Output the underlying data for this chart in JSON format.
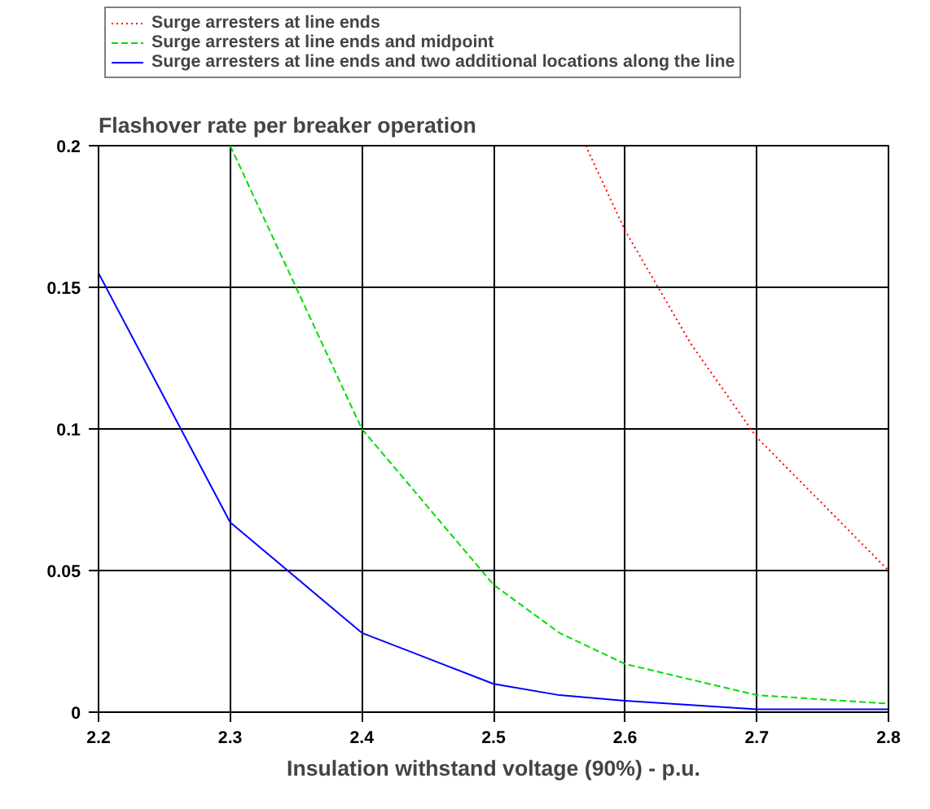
{
  "chart_data": {
    "type": "line",
    "title": "Flashover rate per breaker operation",
    "xlabel": "Insulation withstand voltage (90%) - p.u.",
    "xlim": [
      2.2,
      2.8
    ],
    "ylim": [
      0,
      0.2
    ],
    "xticks": [
      2.2,
      2.3,
      2.4,
      2.5,
      2.6,
      2.7,
      2.8
    ],
    "yticks": [
      0,
      0.05,
      0.1,
      0.15,
      0.2
    ],
    "grid": true,
    "legend": "top",
    "marker": "none",
    "series": [
      {
        "name": "Surge arresters at line ends",
        "color": "#ff0000",
        "line_style": "dotted",
        "x": [
          2.57,
          2.6,
          2.65,
          2.7,
          2.8
        ],
        "values": [
          0.2,
          0.17,
          0.13,
          0.097,
          0.05
        ]
      },
      {
        "name": "Surge arresters at line ends and midpoint",
        "color": "#00dd00",
        "line_style": "dashed",
        "x": [
          2.3,
          2.4,
          2.5,
          2.55,
          2.6,
          2.7,
          2.8
        ],
        "values": [
          0.2,
          0.1,
          0.045,
          0.028,
          0.017,
          0.006,
          0.003
        ]
      },
      {
        "name": "Surge arresters at line ends and two additional locations along the line",
        "color": "#0000ff",
        "line_style": "solid",
        "x": [
          2.2,
          2.3,
          2.4,
          2.5,
          2.55,
          2.6,
          2.7,
          2.8
        ],
        "values": [
          0.155,
          0.067,
          0.028,
          0.01,
          0.006,
          0.004,
          0.001,
          0.001
        ]
      }
    ]
  }
}
